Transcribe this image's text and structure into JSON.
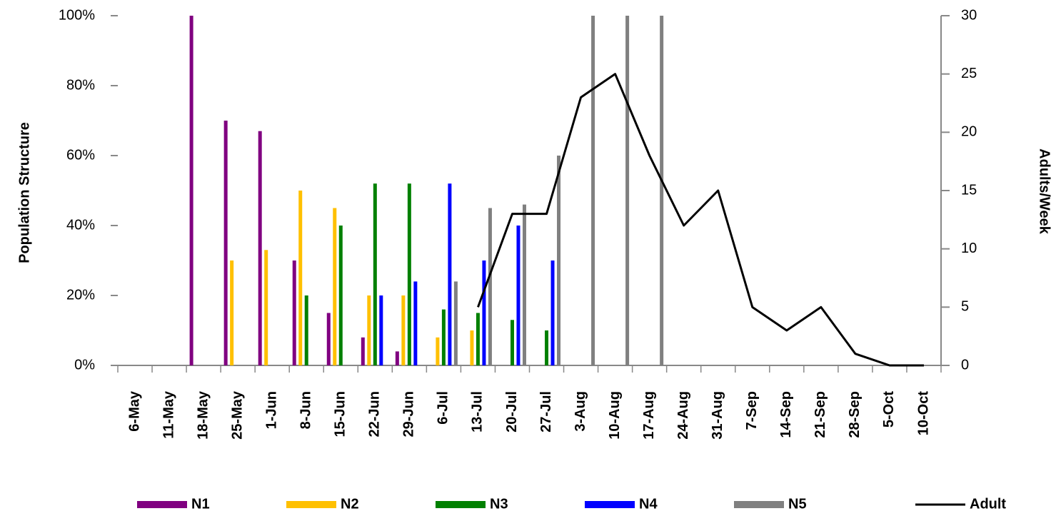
{
  "chart_data": {
    "type": "bar",
    "y_label": "Population Structure",
    "y2_label": "Adults/Week",
    "categories": [
      "6-May",
      "11-May",
      "18-May",
      "25-May",
      "1-Jun",
      "8-Jun",
      "15-Jun",
      "22-Jun",
      "29-Jun",
      "6-Jul",
      "13-Jul",
      "20-Jul",
      "27-Jul",
      "3-Aug",
      "10-Aug",
      "17-Aug",
      "24-Aug",
      "31-Aug",
      "7-Sep",
      "14-Sep",
      "21-Sep",
      "28-Sep",
      "5-Oct",
      "10-Oct"
    ],
    "series": [
      {
        "name": "N1",
        "color": "#800080",
        "values": [
          null,
          null,
          100,
          70,
          67,
          30,
          15,
          8,
          4,
          null,
          null,
          null,
          null,
          null,
          null,
          null,
          null,
          null,
          null,
          null,
          null,
          null,
          null,
          null
        ]
      },
      {
        "name": "N2",
        "color": "#ffc000",
        "values": [
          null,
          null,
          null,
          30,
          33,
          50,
          45,
          20,
          20,
          8,
          10,
          null,
          null,
          null,
          null,
          null,
          null,
          null,
          null,
          null,
          null,
          null,
          null,
          null
        ]
      },
      {
        "name": "N3",
        "color": "#008000",
        "values": [
          null,
          null,
          null,
          null,
          null,
          20,
          40,
          52,
          52,
          16,
          15,
          13,
          10,
          null,
          null,
          null,
          null,
          null,
          null,
          null,
          null,
          null,
          null,
          null
        ]
      },
      {
        "name": "N4",
        "color": "#0000ff",
        "values": [
          null,
          null,
          null,
          null,
          null,
          null,
          null,
          20,
          24,
          52,
          30,
          40,
          30,
          null,
          null,
          null,
          null,
          null,
          null,
          null,
          null,
          null,
          null,
          null
        ]
      },
      {
        "name": "N5",
        "color": "#808080",
        "values": [
          null,
          null,
          null,
          null,
          null,
          null,
          null,
          null,
          null,
          24,
          45,
          46,
          60,
          100,
          100,
          100,
          null,
          null,
          null,
          null,
          null,
          null,
          null,
          null
        ]
      },
      {
        "name": "Adult",
        "color": "#000000",
        "type": "line",
        "axis": "y2",
        "values": [
          null,
          null,
          null,
          null,
          null,
          null,
          null,
          null,
          null,
          null,
          5,
          13,
          13,
          23,
          25,
          18,
          12,
          15,
          5,
          3,
          5,
          1,
          0,
          0
        ]
      }
    ],
    "ylim": [
      0,
      100
    ],
    "yticks": [
      {
        "value": 0,
        "label": "0%"
      },
      {
        "value": 20,
        "label": "20%"
      },
      {
        "value": 40,
        "label": "40%"
      },
      {
        "value": 60,
        "label": "60%"
      },
      {
        "value": 80,
        "label": "80%"
      },
      {
        "value": 100,
        "label": "100%"
      }
    ],
    "y2lim": [
      0,
      30
    ],
    "y2ticks": [
      0,
      5,
      10,
      15,
      20,
      25,
      30
    ],
    "legend": "bottom"
  }
}
